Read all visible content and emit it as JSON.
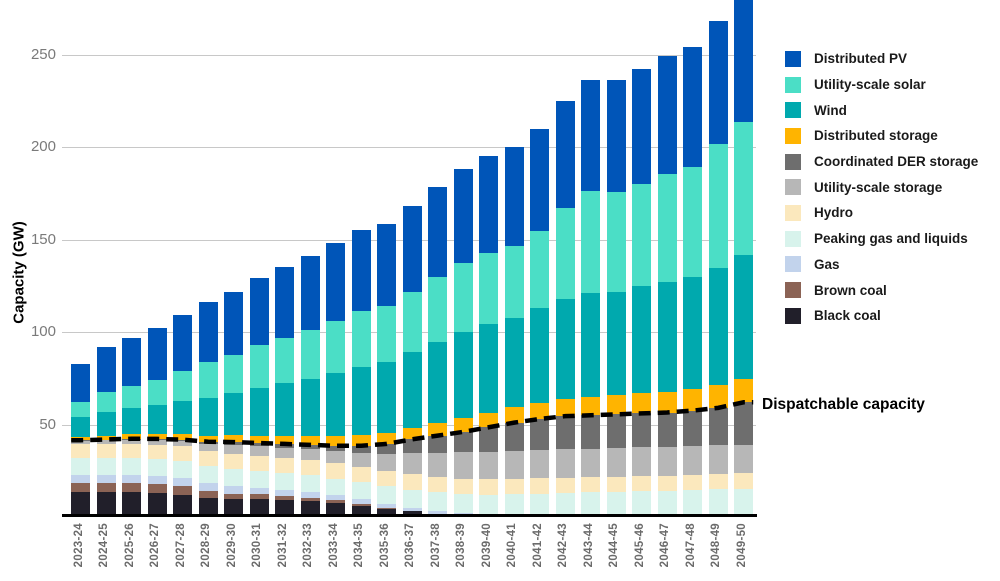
{
  "chart_data": {
    "type": "bar",
    "stacked": true,
    "ylabel": "Capacity (GW)",
    "ylim": [
      0,
      279
    ],
    "yticks": [
      50,
      100,
      150,
      200,
      250
    ],
    "grid": "horizontal",
    "legend_position": "right",
    "categories": [
      "2023-24",
      "2024-25",
      "2025-26",
      "2026-27",
      "2027-28",
      "2028-29",
      "2029-30",
      "2030-31",
      "2031-32",
      "2032-33",
      "2033-34",
      "2034-35",
      "2035-36",
      "2036-37",
      "2037-38",
      "2038-39",
      "2039-40",
      "2040-41",
      "2041-42",
      "2042-43",
      "2043-44",
      "2044-45",
      "2045-46",
      "2046-47",
      "2047-48",
      "2048-49",
      "2049-50"
    ],
    "series": [
      {
        "name": "Distributed PV",
        "color": "#0055B8",
        "values": [
          21,
          24.5,
          26,
          28,
          30,
          32,
          34,
          36,
          38,
          40,
          42,
          43.5,
          44.5,
          46.5,
          48.5,
          50.5,
          52,
          53.5,
          55.5,
          58,
          60,
          60.5,
          62,
          63.5,
          65,
          66.5,
          68
        ]
      },
      {
        "name": "Utility-scale solar",
        "color": "#4BDEC6",
        "values": [
          7.7,
          10.7,
          12.3,
          13.6,
          16.4,
          19.5,
          20.4,
          23,
          24.6,
          26.2,
          28.3,
          30.4,
          30.4,
          32.1,
          35.2,
          37.7,
          38.7,
          38.7,
          41.7,
          49.2,
          54.7,
          53.7,
          55.2,
          58.2,
          59.2,
          66.7,
          71.7
        ]
      },
      {
        "name": "Wind",
        "color": "#00A9AE",
        "values": [
          11,
          12.8,
          14,
          15.5,
          17.8,
          20.5,
          23,
          26,
          28.5,
          31,
          34,
          37,
          38.1,
          41,
          44,
          46.5,
          48,
          48.5,
          51,
          54,
          56.5,
          56,
          58,
          59.5,
          60.5,
          63.5,
          67
        ]
      },
      {
        "name": "Distributed storage",
        "color": "#FFB400",
        "values": [
          1.8,
          2.1,
          2.4,
          2.7,
          3,
          3.3,
          3.6,
          4,
          4.4,
          4.8,
          5.2,
          5.6,
          6,
          6.4,
          6.8,
          7.3,
          7.8,
          8.3,
          8.8,
          9.3,
          9.8,
          10.3,
          10.8,
          11.3,
          11.8,
          12.3,
          12.8
        ]
      },
      {
        "name": "Coordinated DER storage",
        "color": "#6E6E6E",
        "values": [
          0.3,
          0.4,
          0.5,
          0.6,
          0.7,
          1,
          1.5,
          1.7,
          2,
          2.3,
          2.8,
          3.7,
          5.2,
          7.5,
          9.5,
          11.1,
          13.2,
          15.3,
          16.7,
          17.9,
          18,
          18.2,
          18.4,
          18.7,
          19.2,
          20.2,
          22.8
        ]
      },
      {
        "name": "Utility-scale storage",
        "color": "#B7B7B7",
        "values": [
          1.5,
          1.8,
          2.1,
          2.4,
          2.7,
          4,
          5,
          5.2,
          5.5,
          5.9,
          6.6,
          7.8,
          9.3,
          11.4,
          12.9,
          14.2,
          15,
          15.2,
          15.4,
          15.5,
          15.4,
          15.4,
          15.5,
          15.4,
          15.5,
          15.6,
          15.5
        ]
      },
      {
        "name": "Hydro",
        "color": "#FBE8BD",
        "values": [
          7.8,
          7.8,
          7.8,
          7.8,
          8,
          8.3,
          8.3,
          8.3,
          8.3,
          8.3,
          8.3,
          8.3,
          8.3,
          8.3,
          8.3,
          8.3,
          8.3,
          8.3,
          8.3,
          8.3,
          8.3,
          8.3,
          8.3,
          8.3,
          8.3,
          8.3,
          8.3
        ]
      },
      {
        "name": "Peaking gas and liquids",
        "color": "#D8F3EC",
        "values": [
          9.2,
          9.2,
          9.2,
          9.2,
          9.2,
          9.2,
          9,
          9,
          9,
          9,
          9,
          9.2,
          9.5,
          9.8,
          10,
          10.3,
          10.6,
          11,
          11.4,
          11.8,
          12.3,
          12.8,
          13.3,
          13.8,
          14.3,
          14.8,
          15.4
        ]
      },
      {
        "name": "Gas",
        "color": "#C2D3EC",
        "values": [
          4.5,
          4.5,
          4.5,
          4.5,
          4.5,
          4.2,
          4,
          3.6,
          3.2,
          3,
          2.8,
          2.5,
          2.2,
          2,
          1.8,
          1.6,
          1.4,
          1.2,
          1.2,
          1,
          1,
          0.8,
          0.5,
          0.3,
          0.2,
          0.1,
          0
        ]
      },
      {
        "name": "Brown coal",
        "color": "#8B6355",
        "values": [
          4.7,
          4.7,
          4.7,
          4.7,
          4.7,
          3.5,
          2.7,
          2.7,
          2.5,
          2,
          1.5,
          1,
          0.5,
          0,
          0,
          0,
          0,
          0,
          0,
          0,
          0,
          0,
          0,
          0,
          0,
          0,
          0
        ]
      },
      {
        "name": "Black coal",
        "color": "#211F2A",
        "values": [
          13.5,
          13.5,
          13.5,
          13,
          12,
          10.5,
          10,
          9.5,
          9,
          8.5,
          7.5,
          6,
          4.5,
          3,
          1.5,
          0.5,
          0,
          0,
          0,
          0,
          0,
          0,
          0,
          0,
          0,
          0,
          0
        ]
      }
    ],
    "line_overlay": {
      "label": "Dispatchable capacity",
      "style": "dashed",
      "color": "#000000",
      "values": [
        41.5,
        41.9,
        42.3,
        42.2,
        41.8,
        40.7,
        40.5,
        40,
        39.5,
        39,
        38.5,
        38.5,
        39.5,
        42,
        44,
        46,
        48.5,
        51,
        53,
        54.5,
        55,
        55.5,
        56,
        56.5,
        57.5,
        59,
        62
      ]
    },
    "colors": {
      "gridline": "#C8C8C8",
      "axis_line": "#000000",
      "tick_text": "#7A7A7A",
      "x_tick_text": "#6B6B6B"
    }
  }
}
